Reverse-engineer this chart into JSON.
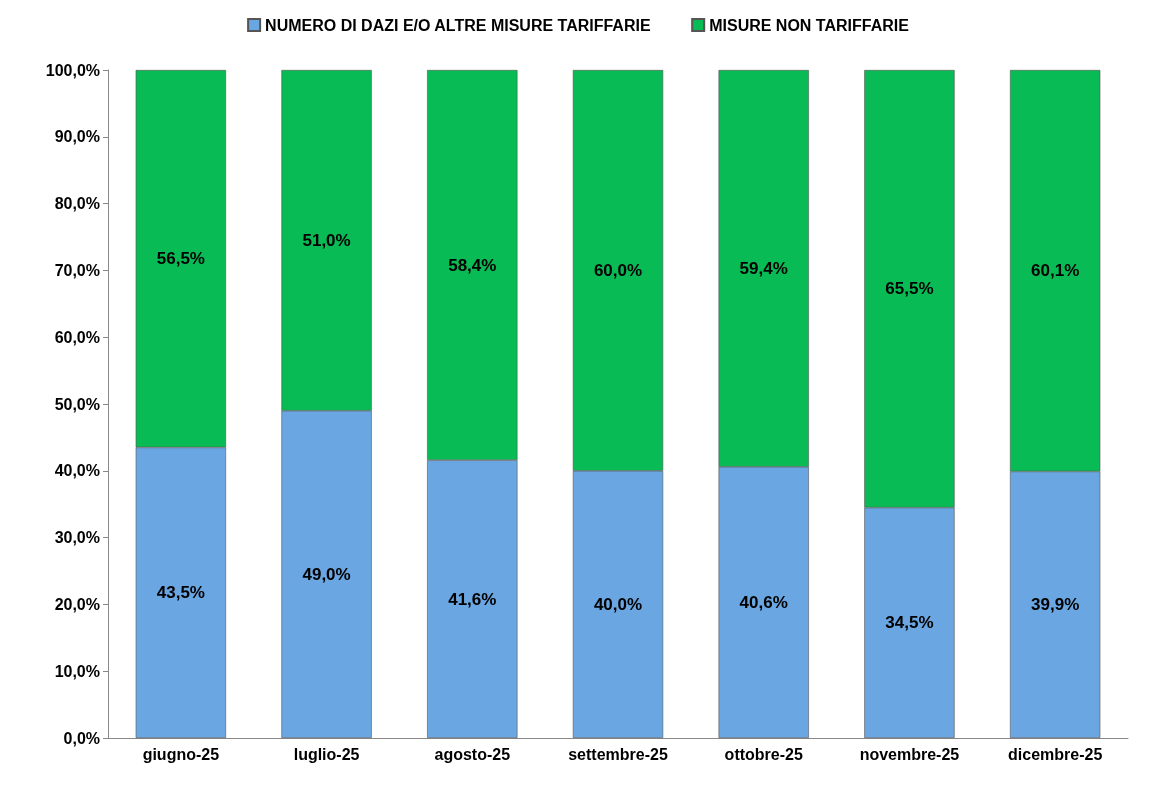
{
  "chart_data": {
    "type": "bar",
    "stacked": true,
    "categories": [
      "giugno-25",
      "luglio-25",
      "agosto-25",
      "settembre-25",
      "ottobre-25",
      "novembre-25",
      "dicembre-25"
    ],
    "series": [
      {
        "name": "NUMERO DI DAZI E/O ALTRE MISURE TARIFFARIE",
        "color": "#6aa6e2",
        "values": [
          43.5,
          49.0,
          41.6,
          40.0,
          40.6,
          34.5,
          39.9
        ],
        "value_labels": [
          "43,5%",
          "49,0%",
          "41,6%",
          "40,0%",
          "40,6%",
          "34,5%",
          "39,9%"
        ]
      },
      {
        "name": "MISURE NON TARIFFARIE",
        "color": "#08bb55",
        "values": [
          56.5,
          51.0,
          58.4,
          60.0,
          59.4,
          65.5,
          60.1
        ],
        "value_labels": [
          "56,5%",
          "51,0%",
          "58,4%",
          "60,0%",
          "59,4%",
          "65,5%",
          "60,1%"
        ]
      }
    ],
    "ylim": [
      0,
      100
    ],
    "yticks": [
      {
        "value": 0,
        "label": "0,0%"
      },
      {
        "value": 10,
        "label": "10,0%"
      },
      {
        "value": 20,
        "label": "20,0%"
      },
      {
        "value": 30,
        "label": "30,0%"
      },
      {
        "value": 40,
        "label": "40,0%"
      },
      {
        "value": 50,
        "label": "50,0%"
      },
      {
        "value": 60,
        "label": "60,0%"
      },
      {
        "value": 70,
        "label": "70,0%"
      },
      {
        "value": 80,
        "label": "80,0%"
      },
      {
        "value": 90,
        "label": "90,0%"
      },
      {
        "value": 100,
        "label": "100,0%"
      }
    ],
    "grid": false,
    "legend": "top"
  }
}
